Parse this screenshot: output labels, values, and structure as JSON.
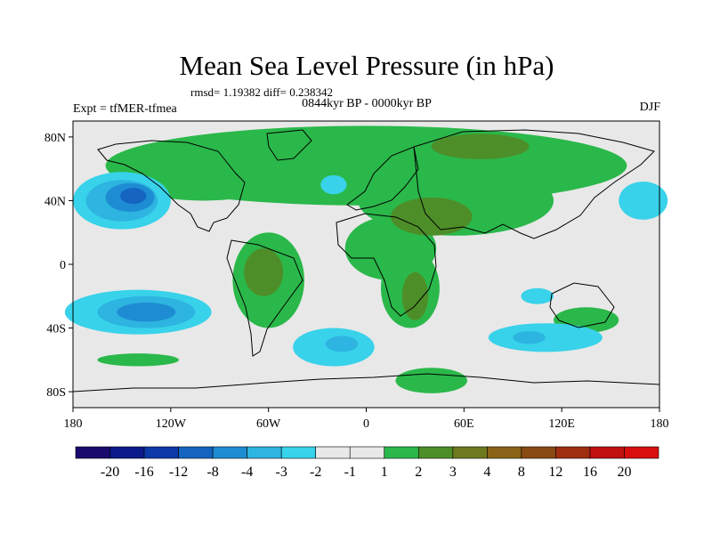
{
  "chart_data": {
    "type": "contour-map",
    "title": "Mean Sea Level Pressure (in hPa)",
    "stats_text": "rmsd= 1.19382 diff= 0.238342",
    "period_text": "0844kyr BP - 0000kyr BP",
    "experiment_text": "Expt = tfMER-tfmea",
    "season": "DJF",
    "x_ticks": [
      {
        "lon": -180,
        "label": "180"
      },
      {
        "lon": -120,
        "label": "120W"
      },
      {
        "lon": -60,
        "label": "60W"
      },
      {
        "lon": 0,
        "label": "0"
      },
      {
        "lon": 60,
        "label": "60E"
      },
      {
        "lon": 120,
        "label": "120E"
      },
      {
        "lon": 180,
        "label": "180"
      }
    ],
    "y_ticks": [
      {
        "lat": 80,
        "label": "80N"
      },
      {
        "lat": 40,
        "label": "40N"
      },
      {
        "lat": 0,
        "label": "0"
      },
      {
        "lat": -40,
        "label": "40S"
      },
      {
        "lat": -80,
        "label": "80S"
      }
    ],
    "lon_range": [
      -180,
      180
    ],
    "lat_range": [
      -90,
      90
    ],
    "colorbar": {
      "colors": [
        "#1a0a6e",
        "#0b1a8a",
        "#0b3aa8",
        "#1464c0",
        "#1e8cd2",
        "#2db4e0",
        "#38d2ea",
        "#e8e8e8",
        "#e8e8e8",
        "#2ab84a",
        "#4e8e28",
        "#6e7a1e",
        "#8a6418",
        "#8a4a14",
        "#a02e10",
        "#c01010",
        "#d81010"
      ],
      "labels": [
        "-20",
        "-16",
        "-12",
        "-8",
        "-4",
        "-3",
        "-2",
        "-1",
        "1",
        "2",
        "3",
        "4",
        "8",
        "12",
        "16",
        "20"
      ]
    },
    "anomaly_regions": [
      {
        "lon": 0,
        "lat": 62,
        "rx": 160,
        "ry": 25,
        "level": "2",
        "color": "#2ab84a"
      },
      {
        "lon": 55,
        "lat": 40,
        "rx": 60,
        "ry": 22,
        "level": "2",
        "color": "#2ab84a"
      },
      {
        "lon": 15,
        "lat": 10,
        "rx": 28,
        "ry": 20,
        "level": "2",
        "color": "#2ab84a"
      },
      {
        "lon": 27,
        "lat": -15,
        "rx": 18,
        "ry": 25,
        "level": "2",
        "color": "#2ab84a"
      },
      {
        "lon": -60,
        "lat": -10,
        "rx": 22,
        "ry": 30,
        "level": "2",
        "color": "#2ab84a"
      },
      {
        "lon": -100,
        "lat": 55,
        "rx": 50,
        "ry": 15,
        "level": "2",
        "color": "#2ab84a"
      },
      {
        "lon": 135,
        "lat": -35,
        "rx": 20,
        "ry": 8,
        "level": "2",
        "color": "#2ab84a"
      },
      {
        "lon": 40,
        "lat": -73,
        "rx": 22,
        "ry": 8,
        "level": "2",
        "color": "#2ab84a"
      },
      {
        "lon": -140,
        "lat": -60,
        "rx": 25,
        "ry": 4,
        "level": "2",
        "color": "#2ab84a"
      },
      {
        "lon": 40,
        "lat": 30,
        "rx": 25,
        "ry": 12,
        "level": "3",
        "color": "#4e8e28"
      },
      {
        "lon": 70,
        "lat": 74,
        "rx": 30,
        "ry": 8,
        "level": "3",
        "color": "#4e8e28"
      },
      {
        "lon": -63,
        "lat": -5,
        "rx": 12,
        "ry": 15,
        "level": "3",
        "color": "#4e8e28"
      },
      {
        "lon": 30,
        "lat": -20,
        "rx": 8,
        "ry": 15,
        "level": "3",
        "color": "#4e8e28"
      },
      {
        "lon": -150,
        "lat": 40,
        "rx": 30,
        "ry": 18,
        "level": "-2",
        "color": "#38d2ea"
      },
      {
        "lon": -150,
        "lat": 40,
        "rx": 22,
        "ry": 13,
        "level": "-3",
        "color": "#2db4e0"
      },
      {
        "lon": -145,
        "lat": 42,
        "rx": 15,
        "ry": 9,
        "level": "-4",
        "color": "#1e8cd2"
      },
      {
        "lon": -143,
        "lat": 43,
        "rx": 8,
        "ry": 5,
        "level": "-8",
        "color": "#1464c0"
      },
      {
        "lon": 170,
        "lat": 40,
        "rx": 15,
        "ry": 12,
        "level": "-2",
        "color": "#38d2ea"
      },
      {
        "lon": -140,
        "lat": -30,
        "rx": 45,
        "ry": 14,
        "level": "-2",
        "color": "#38d2ea"
      },
      {
        "lon": -135,
        "lat": -30,
        "rx": 30,
        "ry": 10,
        "level": "-3",
        "color": "#2db4e0"
      },
      {
        "lon": -135,
        "lat": -30,
        "rx": 18,
        "ry": 6,
        "level": "-4",
        "color": "#1e8cd2"
      },
      {
        "lon": -20,
        "lat": -52,
        "rx": 25,
        "ry": 12,
        "level": "-2",
        "color": "#38d2ea"
      },
      {
        "lon": -15,
        "lat": -50,
        "rx": 10,
        "ry": 5,
        "level": "-3",
        "color": "#2db4e0"
      },
      {
        "lon": 110,
        "lat": -46,
        "rx": 35,
        "ry": 9,
        "level": "-2",
        "color": "#38d2ea"
      },
      {
        "lon": 100,
        "lat": -46,
        "rx": 10,
        "ry": 4,
        "level": "-3",
        "color": "#2db4e0"
      },
      {
        "lon": 105,
        "lat": -20,
        "rx": 10,
        "ry": 5,
        "level": "-2",
        "color": "#38d2ea"
      },
      {
        "lon": -20,
        "lat": 50,
        "rx": 8,
        "ry": 6,
        "level": "-2",
        "color": "#38d2ea"
      }
    ]
  }
}
